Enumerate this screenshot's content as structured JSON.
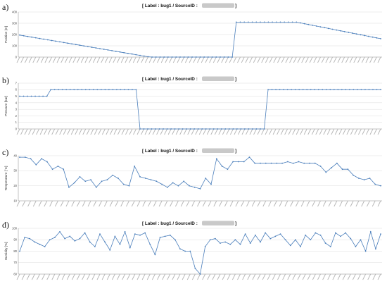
{
  "colors": {
    "series": "#4a7ebb",
    "grid": "#dcdcdc",
    "axis": "#9a9a9a"
  },
  "chart_data": [
    {
      "type": "line",
      "panel": "a)",
      "title": "[ Label : bug1 / SourceID : ",
      "title_tail": " ]",
      "ylabel": "Position [m]",
      "ylim": [
        0,
        400
      ],
      "yticks": [
        0,
        100,
        200,
        300,
        400
      ],
      "grid": true,
      "values": [
        195,
        189,
        183,
        177,
        171,
        165,
        159,
        153,
        147,
        141,
        135,
        129,
        123,
        117,
        111,
        105,
        99,
        93,
        87,
        81,
        75,
        69,
        63,
        57,
        51,
        45,
        39,
        33,
        27,
        21,
        15,
        9,
        3,
        0,
        0,
        0,
        0,
        0,
        0,
        0,
        0,
        0,
        0,
        0,
        0,
        0,
        0,
        0,
        0,
        0,
        0,
        0,
        0,
        0,
        310,
        310,
        310,
        310,
        310,
        310,
        310,
        310,
        310,
        310,
        310,
        310,
        310,
        310,
        310,
        310,
        303,
        296,
        289,
        282,
        275,
        268,
        261,
        254,
        247,
        240,
        233,
        226,
        219,
        212,
        205,
        198,
        191,
        184,
        177,
        170,
        163
      ]
    },
    {
      "type": "line",
      "panel": "b)",
      "title": "[ Label : bug1 / SourceID : ",
      "title_tail": " ]",
      "ylabel": "Pressure [bar]",
      "ylim": [
        0,
        7
      ],
      "yticks": [
        0,
        1,
        2,
        3,
        4,
        5,
        6,
        7
      ],
      "grid": true,
      "values": [
        5,
        5,
        5,
        5,
        5,
        5,
        5,
        5,
        6,
        6,
        6,
        6,
        6,
        6,
        6,
        6,
        6,
        6,
        6,
        6,
        6,
        6,
        6,
        6,
        6,
        6,
        6,
        6,
        6,
        6,
        6,
        0,
        0,
        0,
        0,
        0,
        0,
        0,
        0,
        0,
        0,
        0,
        0,
        0,
        0,
        0,
        0,
        0,
        0,
        0,
        0,
        0,
        0,
        0,
        0,
        0,
        0,
        0,
        0,
        0,
        0,
        0,
        0,
        0,
        6,
        6,
        6,
        6,
        6,
        6,
        6,
        6,
        6,
        6,
        6,
        6,
        6,
        6,
        6,
        6,
        6,
        6,
        6,
        6,
        6,
        6,
        6,
        6,
        6,
        6,
        6,
        6,
        6,
        6
      ]
    },
    {
      "type": "line",
      "panel": "c)",
      "title": "[ Label : bug1 / SourceID : ",
      "title_tail": " ]",
      "ylabel": "Temperature [°C]",
      "ylim": [
        10,
        40
      ],
      "yticks": [
        10,
        20,
        30,
        40
      ],
      "grid": true,
      "values": [
        39,
        39,
        38,
        34,
        38,
        36,
        31,
        33,
        31,
        19,
        22,
        26,
        23,
        24,
        19,
        23,
        24,
        27,
        25,
        21,
        20,
        33,
        26,
        25,
        24,
        23,
        21,
        19,
        22,
        20,
        23,
        20,
        19,
        18,
        25,
        21,
        38,
        33,
        31,
        36,
        36,
        36,
        39,
        35,
        35,
        35,
        35,
        35,
        35,
        36,
        35,
        36,
        35,
        35,
        35,
        33,
        29,
        32,
        35,
        31,
        31,
        27,
        25,
        24,
        25,
        21,
        20
      ]
    },
    {
      "type": "line",
      "panel": "d)",
      "title": "[ Label : bug1 / SourceID : ",
      "title_tail": " ]",
      "ylabel": "Humidity [%]",
      "ylim": [
        60,
        100
      ],
      "yticks": [
        60,
        70,
        80,
        90,
        100
      ],
      "grid": true,
      "values": [
        80,
        92,
        91,
        88,
        86,
        84,
        90,
        92,
        97,
        91,
        93,
        89,
        91,
        96,
        88,
        84,
        95,
        88,
        81,
        93,
        86,
        97,
        83,
        95,
        94,
        96,
        86,
        77,
        92,
        93,
        94,
        90,
        82,
        80,
        80,
        65,
        60,
        84,
        90,
        91,
        87,
        88,
        86,
        90,
        86,
        95,
        87,
        94,
        88,
        96,
        91,
        93,
        95,
        90,
        85,
        90,
        84,
        94,
        90,
        96,
        94,
        87,
        84,
        96,
        93,
        96,
        91,
        84,
        90,
        80,
        97,
        82,
        95
      ]
    }
  ]
}
